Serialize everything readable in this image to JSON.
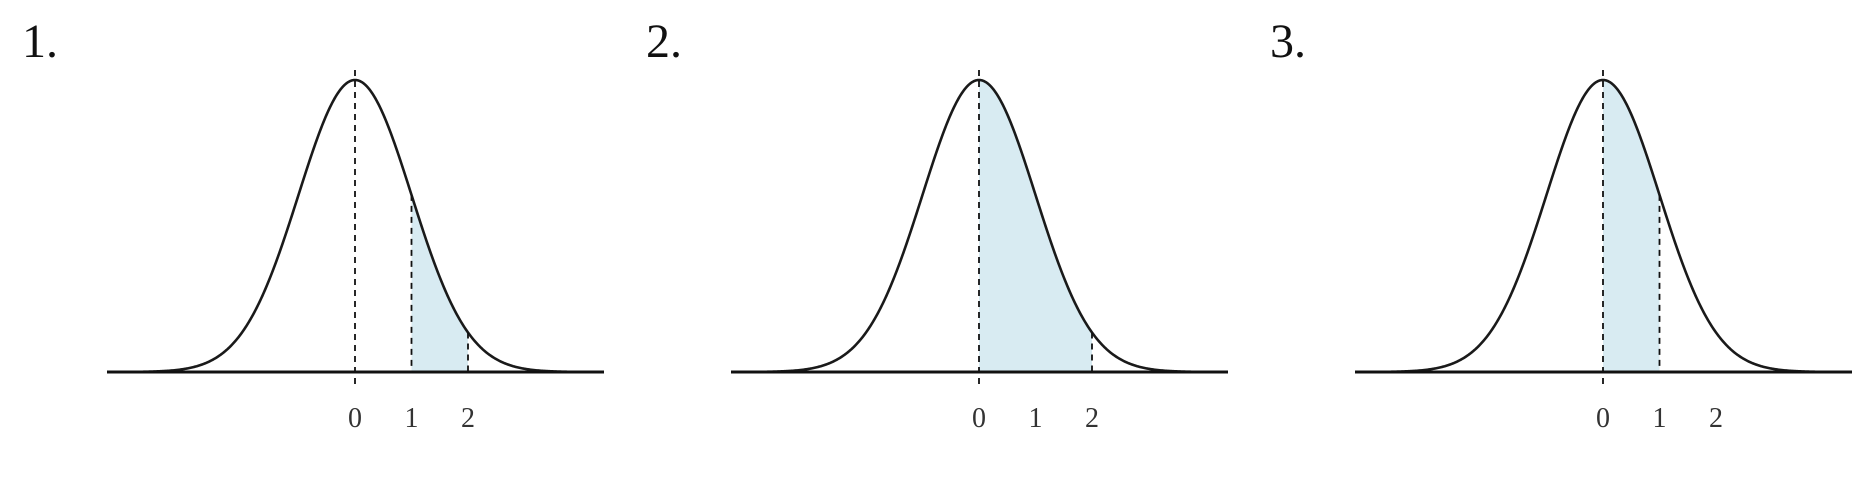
{
  "panels": [
    {
      "label": "1.",
      "shade_from": 1,
      "shade_to": 2,
      "markers": [
        1,
        2
      ],
      "ticks": [
        "0",
        "1",
        "2"
      ]
    },
    {
      "label": "2.",
      "shade_from": 0,
      "shade_to": 2,
      "markers": [
        2
      ],
      "ticks": [
        "0",
        "1",
        "2"
      ]
    },
    {
      "label": "3.",
      "shade_from": 0,
      "shade_to": 1,
      "markers": [
        1
      ],
      "ticks": [
        "0",
        "1",
        "2"
      ]
    }
  ],
  "colors": {
    "curve": "#1a1a1a",
    "axis": "#111111",
    "shade": "#d8ebf2",
    "shade_edge": "#7a8a8f",
    "dashed": "#111111"
  }
}
